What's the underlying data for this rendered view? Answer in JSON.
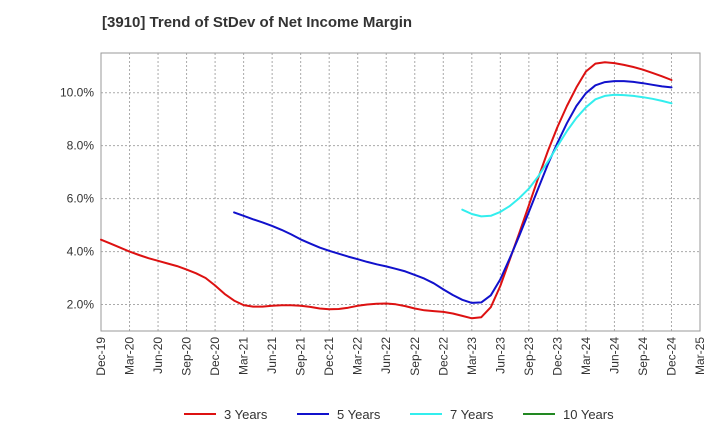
{
  "chart_data": {
    "type": "line",
    "title": "[3910]  Trend of StDev of Net Income Margin",
    "xlabel": "",
    "ylabel": "",
    "x_ticks": [
      "Dec-19",
      "Mar-20",
      "Jun-20",
      "Sep-20",
      "Dec-20",
      "Mar-21",
      "Jun-21",
      "Sep-21",
      "Dec-21",
      "Mar-22",
      "Jun-22",
      "Sep-22",
      "Dec-22",
      "Mar-23",
      "Jun-23",
      "Sep-23",
      "Dec-23",
      "Mar-24",
      "Jun-24",
      "Sep-24",
      "Dec-24",
      "Mar-25"
    ],
    "y_ticks": [
      "2.0%",
      "4.0%",
      "6.0%",
      "8.0%",
      "10.0%"
    ],
    "y_tick_values": [
      2,
      4,
      6,
      8,
      10
    ],
    "ylim": [
      1.0,
      11.5
    ],
    "grid": true,
    "legend_position": "bottom",
    "series": [
      {
        "name": "3 Years",
        "color": "#dd1111",
        "values": [
          [
            "Dec-19",
            4.45
          ],
          [
            "Jan-20",
            4.3
          ],
          [
            "Feb-20",
            4.15
          ],
          [
            "Mar-20",
            4.0
          ],
          [
            "Apr-20",
            3.87
          ],
          [
            "May-20",
            3.75
          ],
          [
            "Jun-20",
            3.65
          ],
          [
            "Jul-20",
            3.55
          ],
          [
            "Aug-20",
            3.45
          ],
          [
            "Sep-20",
            3.32
          ],
          [
            "Oct-20",
            3.18
          ],
          [
            "Nov-20",
            3.0
          ],
          [
            "Dec-20",
            2.72
          ],
          [
            "Jan-21",
            2.4
          ],
          [
            "Feb-21",
            2.15
          ],
          [
            "Mar-21",
            1.98
          ],
          [
            "Apr-21",
            1.92
          ],
          [
            "May-21",
            1.92
          ],
          [
            "Jun-21",
            1.95
          ],
          [
            "Jul-21",
            1.97
          ],
          [
            "Aug-21",
            1.97
          ],
          [
            "Sep-21",
            1.95
          ],
          [
            "Oct-21",
            1.91
          ],
          [
            "Nov-21",
            1.85
          ],
          [
            "Dec-21",
            1.82
          ],
          [
            "Jan-22",
            1.83
          ],
          [
            "Feb-22",
            1.88
          ],
          [
            "Mar-22",
            1.95
          ],
          [
            "Apr-22",
            2.0
          ],
          [
            "May-22",
            2.03
          ],
          [
            "Jun-22",
            2.04
          ],
          [
            "Jul-22",
            2.01
          ],
          [
            "Aug-22",
            1.94
          ],
          [
            "Sep-22",
            1.85
          ],
          [
            "Oct-22",
            1.78
          ],
          [
            "Nov-22",
            1.75
          ],
          [
            "Dec-22",
            1.72
          ],
          [
            "Jan-23",
            1.66
          ],
          [
            "Feb-23",
            1.57
          ],
          [
            "Mar-23",
            1.48
          ],
          [
            "Apr-23",
            1.52
          ],
          [
            "May-23",
            1.9
          ],
          [
            "Jun-23",
            2.7
          ],
          [
            "Jul-23",
            3.7
          ],
          [
            "Aug-23",
            4.7
          ],
          [
            "Sep-23",
            5.75
          ],
          [
            "Oct-23",
            6.8
          ],
          [
            "Nov-23",
            7.8
          ],
          [
            "Dec-23",
            8.7
          ],
          [
            "Jan-24",
            9.5
          ],
          [
            "Feb-24",
            10.2
          ],
          [
            "Mar-24",
            10.8
          ],
          [
            "Apr-24",
            11.1
          ],
          [
            "May-24",
            11.15
          ],
          [
            "Jun-24",
            11.12
          ],
          [
            "Jul-24",
            11.05
          ],
          [
            "Aug-24",
            10.97
          ],
          [
            "Sep-24",
            10.87
          ],
          [
            "Oct-24",
            10.75
          ],
          [
            "Nov-24",
            10.62
          ],
          [
            "Dec-24",
            10.48
          ]
        ]
      },
      {
        "name": "5 Years",
        "color": "#1111cc",
        "values": [
          [
            "Feb-21",
            5.48
          ],
          [
            "Mar-21",
            5.35
          ],
          [
            "Apr-21",
            5.22
          ],
          [
            "May-21",
            5.1
          ],
          [
            "Jun-21",
            4.97
          ],
          [
            "Jul-21",
            4.82
          ],
          [
            "Aug-21",
            4.65
          ],
          [
            "Sep-21",
            4.46
          ],
          [
            "Oct-21",
            4.3
          ],
          [
            "Nov-21",
            4.15
          ],
          [
            "Dec-21",
            4.03
          ],
          [
            "Jan-22",
            3.92
          ],
          [
            "Feb-22",
            3.81
          ],
          [
            "Mar-22",
            3.71
          ],
          [
            "Apr-22",
            3.61
          ],
          [
            "May-22",
            3.52
          ],
          [
            "Jun-22",
            3.44
          ],
          [
            "Jul-22",
            3.35
          ],
          [
            "Aug-22",
            3.25
          ],
          [
            "Sep-22",
            3.12
          ],
          [
            "Oct-22",
            2.98
          ],
          [
            "Nov-22",
            2.8
          ],
          [
            "Dec-22",
            2.57
          ],
          [
            "Jan-23",
            2.36
          ],
          [
            "Feb-23",
            2.18
          ],
          [
            "Mar-23",
            2.06
          ],
          [
            "Apr-23",
            2.08
          ],
          [
            "May-23",
            2.35
          ],
          [
            "Jun-23",
            2.95
          ],
          [
            "Jul-23",
            3.75
          ],
          [
            "Aug-23",
            4.6
          ],
          [
            "Sep-23",
            5.5
          ],
          [
            "Oct-23",
            6.4
          ],
          [
            "Nov-23",
            7.3
          ],
          [
            "Dec-23",
            8.1
          ],
          [
            "Jan-24",
            8.85
          ],
          [
            "Feb-24",
            9.5
          ],
          [
            "Mar-24",
            9.98
          ],
          [
            "Apr-24",
            10.28
          ],
          [
            "May-24",
            10.4
          ],
          [
            "Jun-24",
            10.44
          ],
          [
            "Jul-24",
            10.44
          ],
          [
            "Aug-24",
            10.41
          ],
          [
            "Sep-24",
            10.36
          ],
          [
            "Oct-24",
            10.3
          ],
          [
            "Nov-24",
            10.24
          ],
          [
            "Dec-24",
            10.2
          ]
        ]
      },
      {
        "name": "7 Years",
        "color": "#33eeee",
        "values": [
          [
            "Feb-23",
            5.58
          ],
          [
            "Mar-23",
            5.42
          ],
          [
            "Apr-23",
            5.33
          ],
          [
            "May-23",
            5.35
          ],
          [
            "Jun-23",
            5.5
          ],
          [
            "Jul-23",
            5.72
          ],
          [
            "Aug-23",
            6.02
          ],
          [
            "Sep-23",
            6.38
          ],
          [
            "Oct-23",
            6.85
          ],
          [
            "Nov-23",
            7.4
          ],
          [
            "Dec-23",
            7.98
          ],
          [
            "Jan-24",
            8.55
          ],
          [
            "Feb-24",
            9.05
          ],
          [
            "Mar-24",
            9.45
          ],
          [
            "Apr-24",
            9.75
          ],
          [
            "May-24",
            9.88
          ],
          [
            "Jun-24",
            9.92
          ],
          [
            "Jul-24",
            9.91
          ],
          [
            "Aug-24",
            9.88
          ],
          [
            "Sep-24",
            9.83
          ],
          [
            "Oct-24",
            9.77
          ],
          [
            "Nov-24",
            9.69
          ],
          [
            "Dec-24",
            9.6
          ]
        ]
      },
      {
        "name": "10 Years",
        "color": "#228822",
        "values": []
      }
    ]
  }
}
